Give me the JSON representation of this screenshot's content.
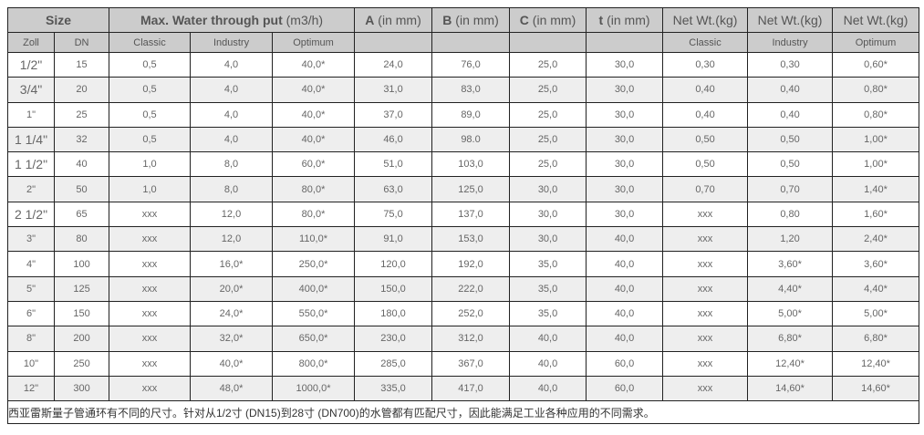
{
  "header": {
    "size": "Size",
    "flow_bold": "Max. Water through put",
    "flow_unit": " (m3/h)",
    "a_bold": "A",
    "a_unit": " (in mm)",
    "b_bold": "B",
    "b_unit": " (in mm)",
    "c_bold": "C",
    "c_unit": " (in mm)",
    "t_bold": "t",
    "t_unit": " (in mm)",
    "wt1": "Net Wt.(kg)",
    "wt2": "Net Wt.(kg)",
    "wt3": "Net Wt.(kg)"
  },
  "subheader": {
    "zoll": "Zoll",
    "dn": "DN",
    "classic": "Classic",
    "industry": "Industry",
    "optimum": "Optimum",
    "wt_classic": "Classic",
    "wt_industry": "Industry",
    "wt_optimum": "Optimum"
  },
  "rows": [
    [
      "1/2\"",
      "15",
      "0,5",
      "4,0",
      "40,0*",
      "24,0",
      "76,0",
      "25,0",
      "30,0",
      "0,30",
      "0,30",
      "0,60*"
    ],
    [
      "3/4\"",
      "20",
      "0,5",
      "4,0",
      "40,0*",
      "31,0",
      "83,0",
      "25,0",
      "30,0",
      "0,40",
      "0,40",
      "0,80*"
    ],
    [
      "1\"",
      "25",
      "0,5",
      "4,0",
      "40,0*",
      "37,0",
      "89,0",
      "25,0",
      "30,0",
      "0,40",
      "0,40",
      "0,80*"
    ],
    [
      "1 1/4\"",
      "32",
      "0,5",
      "4,0",
      "40,0*",
      "46,0",
      "98.0",
      "25,0",
      "30,0",
      "0,50",
      "0,50",
      "1,00*"
    ],
    [
      "1 1/2\"",
      "40",
      "1,0",
      "8,0",
      "60,0*",
      "51,0",
      "103,0",
      "25,0",
      "30,0",
      "0,50",
      "0,50",
      "1,00*"
    ],
    [
      "2\"",
      "50",
      "1,0",
      "8,0",
      "80,0*",
      "63,0",
      "125,0",
      "30,0",
      "30,0",
      "0,70",
      "0,70",
      "1,40*"
    ],
    [
      "2 1/2\"",
      "65",
      "xxx",
      "12,0",
      "80,0*",
      "75,0",
      "137,0",
      "30,0",
      "30,0",
      "xxx",
      "0,80",
      "1,60*"
    ],
    [
      "3\"",
      "80",
      "xxx",
      "12,0",
      "110,0*",
      "91,0",
      "153,0",
      "30,0",
      "40,0",
      "xxx",
      "1,20",
      "2,40*"
    ],
    [
      "4\"",
      "100",
      "xxx",
      "16,0*",
      "250,0*",
      "120,0",
      "192,0",
      "35,0",
      "40,0",
      "xxx",
      "3,60*",
      "3,60*"
    ],
    [
      "5\"",
      "125",
      "xxx",
      "20,0*",
      "400,0*",
      "150,0",
      "222,0",
      "35,0",
      "40,0",
      "xxx",
      "4,40*",
      "4,40*"
    ],
    [
      "6\"",
      "150",
      "xxx",
      "24,0*",
      "550,0*",
      "180,0",
      "252,0",
      "35,0",
      "40,0",
      "xxx",
      "5,00*",
      "5,00*"
    ],
    [
      "8\"",
      "200",
      "xxx",
      "32,0*",
      "650,0*",
      "230,0",
      "312,0",
      "40,0",
      "40,0",
      "xxx",
      "6,80*",
      "6,80*"
    ],
    [
      "10\"",
      "250",
      "xxx",
      "40,0*",
      "800,0*",
      "285,0",
      "367,0",
      "40,0",
      "60,0",
      "xxx",
      "12,40*",
      "12,40*"
    ],
    [
      "12\"",
      "300",
      "xxx",
      "48,0*",
      "1000,0*",
      "335,0",
      "417,0",
      "40,0",
      "60,0",
      "xxx",
      "14,60*",
      "14,60*"
    ]
  ],
  "footer": "西亚雷斯量子管通环有不同的尺寸。针对从1/2寸 (DN15)到28寸 (DN700)的水管都有匹配尺寸，因此能满足工业各种应用的不同需求。"
}
